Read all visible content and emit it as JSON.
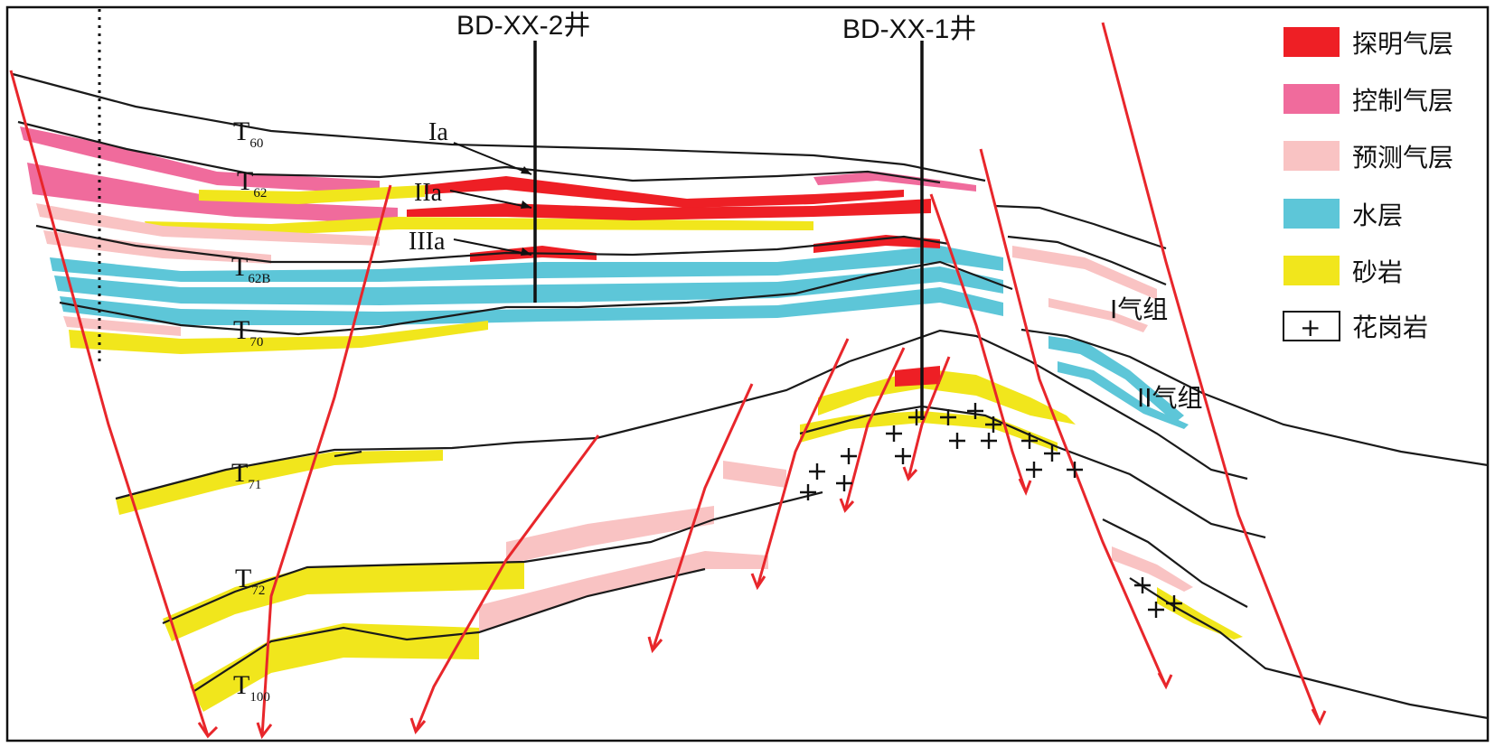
{
  "wells": [
    {
      "label": "BD-XX-2井"
    },
    {
      "label": "BD-XX-1井"
    }
  ],
  "horizons": [
    {
      "main": "T",
      "sub": "60"
    },
    {
      "main": "T",
      "sub": "62"
    },
    {
      "main": "T",
      "sub": "62B"
    },
    {
      "main": "T",
      "sub": "70"
    },
    {
      "main": "T",
      "sub": "71"
    },
    {
      "main": "T",
      "sub": "72"
    },
    {
      "main": "T",
      "sub": "100"
    }
  ],
  "zone_labels": [
    "Ia",
    "IIa",
    "IIIa"
  ],
  "group_labels": [
    "I气组",
    "II气组"
  ],
  "legend": [
    {
      "label": "探明气层",
      "color": "#ee1f25"
    },
    {
      "label": "控制气层",
      "color": "#f06b9c"
    },
    {
      "label": "预测气层",
      "color": "#f9c3c3"
    },
    {
      "label": "水层",
      "color": "#5dc6d8"
    },
    {
      "label": "砂岩",
      "color": "#f1e61c"
    },
    {
      "label": "花岗岩",
      "symbol": "+"
    }
  ],
  "colors": {
    "proven_gas": "#ee1f25",
    "controlled_gas": "#f06b9c",
    "predicted_gas": "#f9c3c3",
    "water": "#5dc6d8",
    "sandstone": "#f1e61c",
    "fault": "#e8262b"
  }
}
